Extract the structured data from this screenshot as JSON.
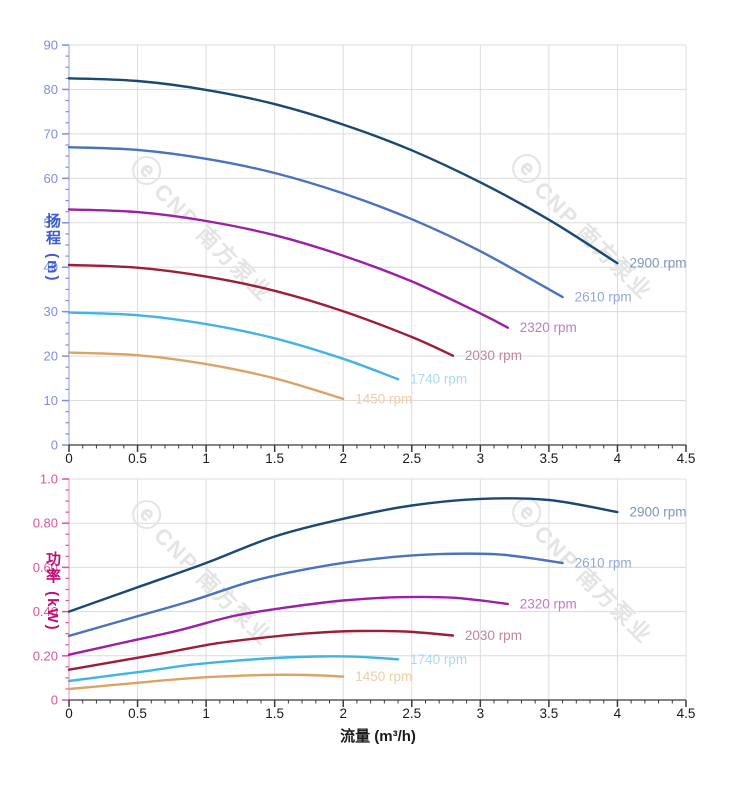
{
  "xlabel": "流量 (m³/h)",
  "watermark": {
    "logo": "ⓔ",
    "text": "CNP 南方泵业",
    "color": "#e4e4e4"
  },
  "chart_data": [
    {
      "id": "head-curve-chart",
      "type": "line",
      "ylabel": "扬程 (m)",
      "xlabel": "流量 (m³/h)",
      "axis_title_color": "#3b5bd2",
      "tick_text_color": "#7f8de2",
      "axis_line_color": "#a7b1ee",
      "x_axis_color": "#3a3a3a",
      "x_tick_text_color": "#1a1a1a",
      "grid_color": "#dcdcdc",
      "ylim": [
        0,
        90
      ],
      "xlim": [
        0,
        4.5
      ],
      "yticks": [
        "0",
        "10",
        "20",
        "30",
        "40",
        "50",
        "60",
        "70",
        "80",
        "90"
      ],
      "xticks": [
        "0",
        "0.5",
        "1",
        "1.5",
        "2",
        "2.5",
        "3",
        "3.5",
        "4",
        "4.5"
      ],
      "legend_position": "end-of-curve",
      "grid": "on",
      "series": [
        {
          "name": "2900 rpm",
          "color": "#1a4a73",
          "label_color": "#7e97b4",
          "x": [
            0,
            0.5,
            1,
            1.5,
            2,
            2.5,
            3,
            3.5,
            4
          ],
          "y": [
            82.5,
            81.9,
            79.9,
            76.7,
            72.1,
            66.3,
            59.1,
            50.7,
            40.9
          ]
        },
        {
          "name": "2610 rpm",
          "color": "#4a73bd",
          "label_color": "#92a7d8",
          "x": [
            0,
            0.5,
            1,
            1.5,
            2,
            2.5,
            3,
            3.6
          ],
          "y": [
            67,
            66.4,
            64.4,
            61.2,
            56.6,
            50.8,
            43.6,
            33.3
          ]
        },
        {
          "name": "2320 rpm",
          "color": "#9c1fa4",
          "label_color": "#c47ac6",
          "x": [
            0,
            0.5,
            1,
            1.5,
            2,
            2.5,
            3,
            3.2
          ],
          "y": [
            53,
            52.4,
            50.4,
            47.2,
            42.6,
            36.8,
            29.6,
            26.4
          ]
        },
        {
          "name": "2030 rpm",
          "color": "#9e1d3a",
          "label_color": "#c2889a",
          "x": [
            0,
            0.5,
            1,
            1.5,
            2,
            2.5,
            2.8
          ],
          "y": [
            40.5,
            39.9,
            37.9,
            34.7,
            30.1,
            24.3,
            20.1
          ]
        },
        {
          "name": "1740 rpm",
          "color": "#41b4e6",
          "label_color": "#a9daf2",
          "x": [
            0,
            0.5,
            1,
            1.5,
            2,
            2.4
          ],
          "y": [
            29.8,
            29.2,
            27.2,
            24.0,
            19.4,
            14.8
          ]
        },
        {
          "name": "1450 rpm",
          "color": "#d9a466",
          "label_color": "#ecceaa",
          "x": [
            0,
            0.5,
            1,
            1.5,
            2
          ],
          "y": [
            20.8,
            20.2,
            18.2,
            15.0,
            10.4
          ]
        }
      ]
    },
    {
      "id": "power-curve-chart",
      "type": "line",
      "ylabel": "功率 (kW)",
      "xlabel": "流量 (m³/h)",
      "axis_title_color": "#c40d72",
      "tick_text_color": "#d8569c",
      "axis_line_color": "#f0a3ca",
      "x_axis_color": "#3a3a3a",
      "x_tick_text_color": "#1a1a1a",
      "grid_color": "#dcdcdc",
      "ylim": [
        0,
        1.0
      ],
      "xlim": [
        0,
        4.5
      ],
      "yticks": [
        "0",
        "0.20",
        "0.40",
        "0.60",
        "0.80",
        "1.0"
      ],
      "xticks": [
        "0",
        "0.5",
        "1",
        "1.5",
        "2",
        "2.5",
        "3",
        "3.5",
        "4",
        "4.5"
      ],
      "legend_position": "end-of-curve",
      "grid": "on",
      "series": [
        {
          "name": "2900 rpm",
          "color": "#1a4a73",
          "label_color": "#7e97b4",
          "x": [
            0,
            0.5,
            1,
            1.5,
            2,
            2.5,
            3,
            3.5,
            4
          ],
          "y": [
            0.4,
            0.51,
            0.62,
            0.74,
            0.82,
            0.88,
            0.91,
            0.905,
            0.85
          ]
        },
        {
          "name": "2610 rpm",
          "color": "#4a73bd",
          "label_color": "#92a7d8",
          "x": [
            0,
            0.45,
            0.9,
            1.35,
            1.8,
            2.25,
            2.7,
            3.15,
            3.6
          ],
          "y": [
            0.29,
            0.37,
            0.45,
            0.54,
            0.6,
            0.64,
            0.66,
            0.658,
            0.62
          ]
        },
        {
          "name": "2320 rpm",
          "color": "#9c1fa4",
          "label_color": "#c47ac6",
          "x": [
            0,
            0.4,
            0.8,
            1.2,
            1.6,
            2.0,
            2.4,
            2.8,
            3.2
          ],
          "y": [
            0.205,
            0.26,
            0.315,
            0.38,
            0.42,
            0.45,
            0.465,
            0.463,
            0.435
          ]
        },
        {
          "name": "2030 rpm",
          "color": "#9e1d3a",
          "label_color": "#c2889a",
          "x": [
            0,
            0.35,
            0.7,
            1.05,
            1.4,
            1.75,
            2.1,
            2.45,
            2.8
          ],
          "y": [
            0.137,
            0.175,
            0.213,
            0.254,
            0.281,
            0.302,
            0.312,
            0.31,
            0.292
          ]
        },
        {
          "name": "1740 rpm",
          "color": "#41b4e6",
          "label_color": "#a9daf2",
          "x": [
            0,
            0.3,
            0.6,
            0.9,
            1.2,
            1.5,
            1.8,
            2.1,
            2.4
          ],
          "y": [
            0.086,
            0.11,
            0.134,
            0.16,
            0.177,
            0.19,
            0.197,
            0.196,
            0.184
          ]
        },
        {
          "name": "1450 rpm",
          "color": "#d9a466",
          "label_color": "#ecceaa",
          "x": [
            0,
            0.25,
            0.5,
            0.75,
            1,
            1.25,
            1.5,
            1.75,
            2
          ],
          "y": [
            0.05,
            0.064,
            0.078,
            0.092,
            0.103,
            0.11,
            0.114,
            0.113,
            0.106
          ]
        }
      ]
    }
  ]
}
